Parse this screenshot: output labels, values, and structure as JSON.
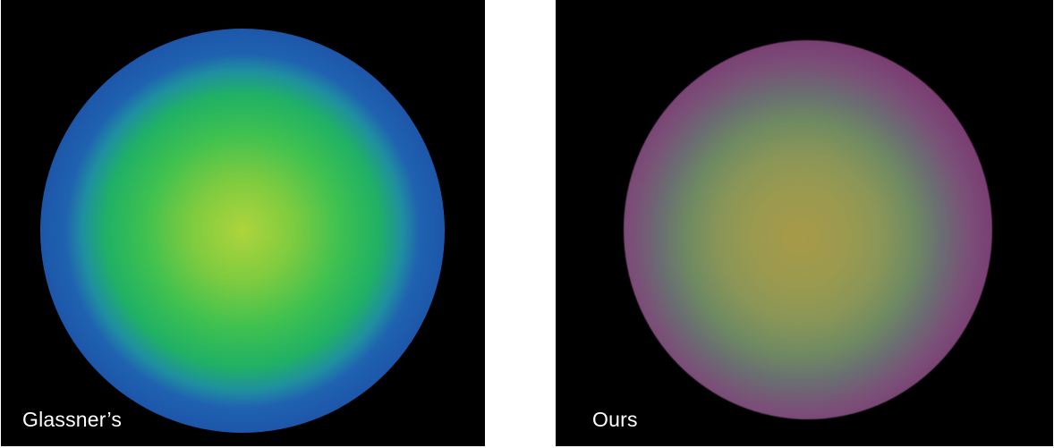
{
  "panels": [
    {
      "caption": "Glassner’s",
      "colors": {
        "background": "#000000",
        "center": "#aed43c",
        "mid": "#3fc150",
        "ring": "#1c4fa6",
        "rim": "#ff6a80"
      }
    },
    {
      "caption": "Ours",
      "colors": {
        "background": "#000000",
        "center": "#a89a48",
        "mid": "#6f8a62",
        "ring": "#7a3c72",
        "rim": "#2a1c26"
      }
    }
  ]
}
